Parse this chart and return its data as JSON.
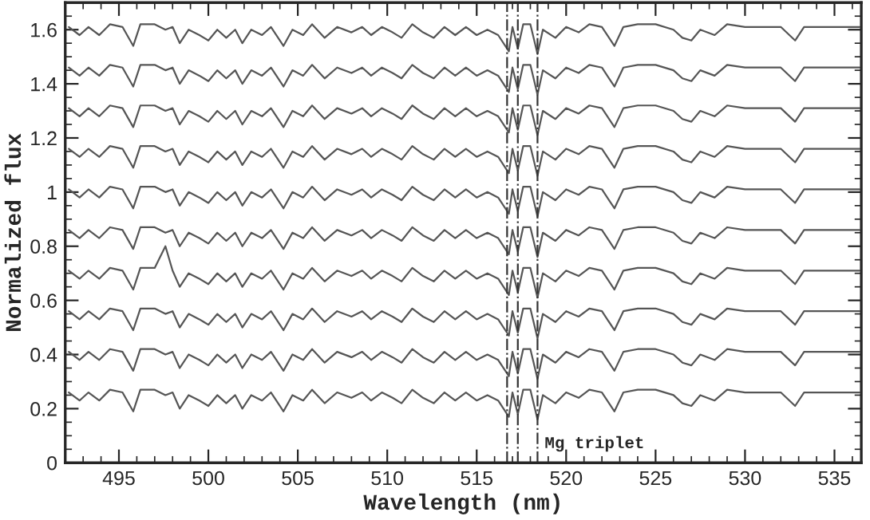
{
  "chart_data": {
    "type": "line",
    "xlabel": "Wavelength (nm)",
    "ylabel": "Normalized flux",
    "x": [
      492.2,
      492.8,
      493.3,
      493.9,
      494.5,
      495.2,
      495.8,
      496.2,
      497.0,
      497.6,
      498.0,
      498.4,
      498.9,
      499.5,
      500.0,
      500.5,
      501.0,
      501.5,
      501.9,
      502.4,
      503.0,
      503.5,
      504.2,
      504.7,
      505.3,
      505.8,
      506.5,
      507.2,
      508.0,
      508.6,
      509.1,
      509.7,
      510.3,
      510.8,
      511.4,
      512.0,
      512.6,
      513.2,
      513.8,
      514.4,
      515.0,
      515.6,
      516.2,
      516.8,
      517.0,
      517.3,
      517.6,
      518.0,
      518.4,
      518.7,
      519.4,
      520.0,
      520.7,
      521.3,
      522.0,
      522.7,
      523.2,
      524.0,
      525.0,
      526.0,
      526.5,
      527.0,
      527.5,
      528.3,
      529.0,
      530.0,
      531.0,
      532.0,
      532.8,
      533.3,
      534.5,
      535.5,
      536.4
    ],
    "series": [
      {
        "color": "#555555",
        "values": [
          1.61,
          1.58,
          1.61,
          1.58,
          1.62,
          1.61,
          1.54,
          1.62,
          1.62,
          1.6,
          1.61,
          1.55,
          1.6,
          1.58,
          1.56,
          1.6,
          1.57,
          1.6,
          1.55,
          1.6,
          1.58,
          1.61,
          1.54,
          1.6,
          1.58,
          1.62,
          1.57,
          1.61,
          1.59,
          1.61,
          1.58,
          1.61,
          1.59,
          1.57,
          1.62,
          1.59,
          1.57,
          1.61,
          1.58,
          1.61,
          1.58,
          1.6,
          1.58,
          1.52,
          1.61,
          1.53,
          1.62,
          1.62,
          1.51,
          1.6,
          1.57,
          1.61,
          1.59,
          1.62,
          1.61,
          1.54,
          1.61,
          1.62,
          1.62,
          1.6,
          1.57,
          1.56,
          1.6,
          1.58,
          1.62,
          1.61,
          1.61,
          1.61,
          1.56,
          1.61,
          1.61,
          1.61,
          1.61
        ]
      },
      {
        "color": "#555555",
        "values": [
          1.46,
          1.43,
          1.46,
          1.43,
          1.47,
          1.46,
          1.39,
          1.47,
          1.47,
          1.45,
          1.46,
          1.4,
          1.45,
          1.43,
          1.41,
          1.45,
          1.42,
          1.45,
          1.4,
          1.45,
          1.43,
          1.46,
          1.39,
          1.45,
          1.43,
          1.47,
          1.42,
          1.46,
          1.44,
          1.46,
          1.43,
          1.46,
          1.44,
          1.42,
          1.47,
          1.44,
          1.42,
          1.46,
          1.43,
          1.46,
          1.43,
          1.45,
          1.43,
          1.37,
          1.46,
          1.38,
          1.47,
          1.47,
          1.36,
          1.45,
          1.42,
          1.46,
          1.44,
          1.47,
          1.46,
          1.39,
          1.46,
          1.47,
          1.47,
          1.45,
          1.42,
          1.41,
          1.45,
          1.43,
          1.47,
          1.46,
          1.46,
          1.46,
          1.41,
          1.46,
          1.46,
          1.46,
          1.46
        ]
      },
      {
        "color": "#555555",
        "values": [
          1.31,
          1.28,
          1.31,
          1.28,
          1.32,
          1.31,
          1.24,
          1.32,
          1.32,
          1.3,
          1.31,
          1.25,
          1.3,
          1.28,
          1.26,
          1.3,
          1.27,
          1.3,
          1.25,
          1.3,
          1.28,
          1.31,
          1.24,
          1.3,
          1.28,
          1.32,
          1.27,
          1.31,
          1.29,
          1.31,
          1.28,
          1.31,
          1.29,
          1.27,
          1.32,
          1.29,
          1.27,
          1.31,
          1.28,
          1.31,
          1.28,
          1.3,
          1.28,
          1.22,
          1.31,
          1.23,
          1.32,
          1.32,
          1.21,
          1.3,
          1.27,
          1.31,
          1.29,
          1.32,
          1.31,
          1.24,
          1.31,
          1.32,
          1.32,
          1.3,
          1.27,
          1.26,
          1.3,
          1.28,
          1.32,
          1.31,
          1.31,
          1.31,
          1.26,
          1.31,
          1.31,
          1.31,
          1.31
        ]
      },
      {
        "color": "#555555",
        "values": [
          1.16,
          1.13,
          1.16,
          1.13,
          1.17,
          1.16,
          1.09,
          1.17,
          1.17,
          1.15,
          1.16,
          1.1,
          1.15,
          1.13,
          1.11,
          1.15,
          1.12,
          1.15,
          1.1,
          1.15,
          1.13,
          1.16,
          1.09,
          1.15,
          1.13,
          1.17,
          1.12,
          1.16,
          1.14,
          1.16,
          1.13,
          1.16,
          1.14,
          1.12,
          1.17,
          1.14,
          1.12,
          1.16,
          1.13,
          1.16,
          1.13,
          1.15,
          1.13,
          1.07,
          1.16,
          1.08,
          1.17,
          1.17,
          1.06,
          1.15,
          1.12,
          1.16,
          1.14,
          1.17,
          1.16,
          1.09,
          1.16,
          1.17,
          1.17,
          1.15,
          1.12,
          1.11,
          1.15,
          1.13,
          1.17,
          1.16,
          1.16,
          1.16,
          1.11,
          1.16,
          1.16,
          1.16,
          1.16
        ]
      },
      {
        "color": "#555555",
        "values": [
          1.01,
          0.98,
          1.01,
          0.98,
          1.02,
          1.01,
          0.94,
          1.02,
          1.02,
          1.0,
          1.01,
          0.95,
          1.0,
          0.98,
          0.96,
          1.0,
          0.97,
          1.0,
          0.95,
          1.0,
          0.98,
          1.01,
          0.94,
          1.0,
          0.98,
          1.02,
          0.97,
          1.01,
          0.99,
          1.01,
          0.98,
          1.01,
          0.99,
          0.97,
          1.02,
          0.99,
          0.97,
          1.01,
          0.98,
          1.01,
          0.98,
          1.0,
          0.98,
          0.92,
          1.01,
          0.93,
          1.02,
          1.02,
          0.91,
          1.0,
          0.97,
          1.01,
          0.99,
          1.02,
          1.01,
          0.94,
          1.01,
          1.02,
          1.02,
          1.0,
          0.97,
          0.96,
          1.0,
          0.98,
          1.02,
          1.01,
          1.01,
          1.01,
          0.96,
          1.01,
          1.01,
          1.01,
          1.01
        ]
      },
      {
        "color": "#555555",
        "values": [
          0.86,
          0.83,
          0.86,
          0.83,
          0.87,
          0.86,
          0.79,
          0.87,
          0.87,
          0.85,
          0.86,
          0.8,
          0.85,
          0.83,
          0.81,
          0.85,
          0.82,
          0.85,
          0.8,
          0.85,
          0.83,
          0.86,
          0.79,
          0.85,
          0.83,
          0.87,
          0.82,
          0.86,
          0.84,
          0.86,
          0.83,
          0.86,
          0.84,
          0.82,
          0.87,
          0.84,
          0.82,
          0.86,
          0.83,
          0.86,
          0.83,
          0.85,
          0.83,
          0.77,
          0.86,
          0.78,
          0.87,
          0.87,
          0.76,
          0.85,
          0.82,
          0.86,
          0.84,
          0.87,
          0.86,
          0.79,
          0.86,
          0.87,
          0.87,
          0.85,
          0.82,
          0.81,
          0.85,
          0.83,
          0.87,
          0.86,
          0.86,
          0.86,
          0.81,
          0.86,
          0.86,
          0.86,
          0.86
        ]
      },
      {
        "color": "#555555",
        "values": [
          0.71,
          0.68,
          0.71,
          0.68,
          0.72,
          0.71,
          0.64,
          0.72,
          0.72,
          0.8,
          0.71,
          0.65,
          0.7,
          0.68,
          0.66,
          0.7,
          0.67,
          0.7,
          0.65,
          0.7,
          0.68,
          0.71,
          0.64,
          0.7,
          0.68,
          0.72,
          0.67,
          0.71,
          0.69,
          0.71,
          0.68,
          0.71,
          0.69,
          0.67,
          0.72,
          0.69,
          0.67,
          0.71,
          0.68,
          0.71,
          0.68,
          0.7,
          0.68,
          0.62,
          0.71,
          0.63,
          0.72,
          0.72,
          0.61,
          0.7,
          0.67,
          0.71,
          0.69,
          0.72,
          0.71,
          0.64,
          0.71,
          0.72,
          0.72,
          0.7,
          0.67,
          0.66,
          0.7,
          0.68,
          0.72,
          0.71,
          0.71,
          0.71,
          0.66,
          0.71,
          0.71,
          0.71,
          0.71
        ]
      },
      {
        "color": "#555555",
        "values": [
          0.56,
          0.53,
          0.56,
          0.53,
          0.57,
          0.56,
          0.49,
          0.57,
          0.57,
          0.55,
          0.56,
          0.5,
          0.55,
          0.53,
          0.51,
          0.55,
          0.52,
          0.55,
          0.5,
          0.55,
          0.53,
          0.56,
          0.49,
          0.55,
          0.53,
          0.57,
          0.52,
          0.56,
          0.54,
          0.56,
          0.53,
          0.56,
          0.54,
          0.52,
          0.57,
          0.54,
          0.52,
          0.56,
          0.53,
          0.56,
          0.53,
          0.55,
          0.53,
          0.47,
          0.56,
          0.48,
          0.57,
          0.57,
          0.46,
          0.55,
          0.52,
          0.56,
          0.54,
          0.57,
          0.56,
          0.49,
          0.56,
          0.57,
          0.57,
          0.55,
          0.52,
          0.51,
          0.55,
          0.53,
          0.57,
          0.56,
          0.56,
          0.56,
          0.51,
          0.56,
          0.56,
          0.56,
          0.56
        ]
      },
      {
        "color": "#555555",
        "values": [
          0.41,
          0.38,
          0.41,
          0.38,
          0.42,
          0.41,
          0.34,
          0.42,
          0.42,
          0.4,
          0.41,
          0.35,
          0.4,
          0.38,
          0.36,
          0.4,
          0.37,
          0.4,
          0.35,
          0.4,
          0.38,
          0.41,
          0.34,
          0.4,
          0.38,
          0.42,
          0.37,
          0.41,
          0.39,
          0.41,
          0.38,
          0.41,
          0.39,
          0.37,
          0.42,
          0.39,
          0.37,
          0.41,
          0.38,
          0.41,
          0.38,
          0.4,
          0.38,
          0.32,
          0.41,
          0.33,
          0.42,
          0.42,
          0.31,
          0.4,
          0.37,
          0.41,
          0.39,
          0.42,
          0.41,
          0.34,
          0.41,
          0.42,
          0.42,
          0.4,
          0.37,
          0.36,
          0.4,
          0.38,
          0.42,
          0.41,
          0.41,
          0.41,
          0.36,
          0.41,
          0.41,
          0.41,
          0.41
        ]
      },
      {
        "color": "#555555",
        "values": [
          0.26,
          0.23,
          0.26,
          0.23,
          0.27,
          0.26,
          0.19,
          0.27,
          0.27,
          0.25,
          0.26,
          0.2,
          0.25,
          0.23,
          0.21,
          0.25,
          0.22,
          0.25,
          0.2,
          0.25,
          0.23,
          0.26,
          0.19,
          0.25,
          0.23,
          0.27,
          0.22,
          0.26,
          0.24,
          0.26,
          0.23,
          0.26,
          0.24,
          0.22,
          0.27,
          0.24,
          0.22,
          0.26,
          0.23,
          0.26,
          0.23,
          0.25,
          0.23,
          0.17,
          0.26,
          0.18,
          0.27,
          0.27,
          0.16,
          0.25,
          0.22,
          0.26,
          0.24,
          0.27,
          0.26,
          0.19,
          0.26,
          0.27,
          0.27,
          0.25,
          0.22,
          0.21,
          0.25,
          0.23,
          0.27,
          0.26,
          0.26,
          0.26,
          0.21,
          0.26,
          0.26,
          0.26,
          0.26
        ]
      }
    ],
    "xlim": [
      492,
      536.5
    ],
    "ylim": [
      0,
      1.7
    ],
    "xticks": [
      495,
      500,
      505,
      510,
      515,
      520,
      525,
      530,
      535
    ],
    "yticks": [
      0,
      0.2,
      0.4,
      0.6,
      0.8,
      1,
      1.2,
      1.4,
      1.6
    ],
    "ref_lines": [
      {
        "axis": "x",
        "value": 516.7,
        "color": "#333333",
        "line_style": "dashed"
      },
      {
        "axis": "x",
        "value": 517.3,
        "color": "#333333",
        "line_style": "dashed"
      },
      {
        "axis": "x",
        "value": 518.4,
        "color": "#333333",
        "line_style": "dashed"
      }
    ],
    "annotations": [
      {
        "text": "Mg triplet",
        "x": 518.8,
        "y": 0.07
      }
    ],
    "grid": false,
    "legend": false,
    "line_style": "solid",
    "marker": "none"
  }
}
